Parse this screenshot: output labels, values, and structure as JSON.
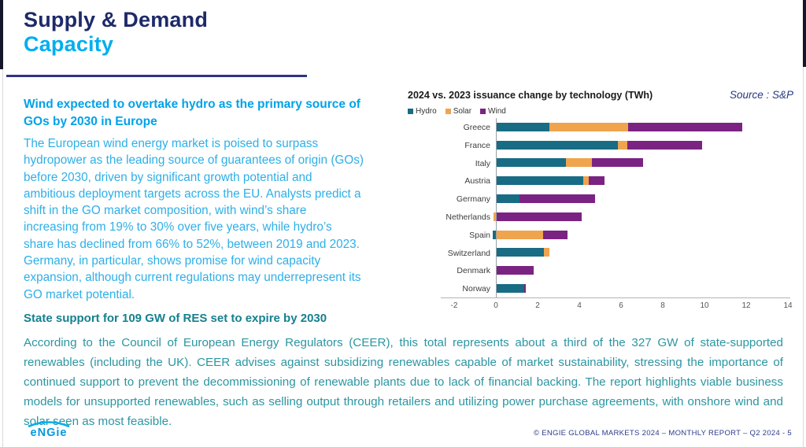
{
  "header": {
    "title_line1": "Supply & Demand",
    "title_line2": "Capacity"
  },
  "left_column": {
    "heading": "Wind expected to overtake hydro as the primary source of GOs by 2030 in Europe",
    "body": "The European wind energy market is poised to surpass hydropower as the leading source of guarantees of origin (GOs) before 2030, driven by significant growth potential and ambitious deployment targets across the EU. Analysts predict a shift in the GO market composition, with wind’s share increasing from 19% to 30% over five years, while hydro’s share has declined from 66% to 52%, between 2019 and 2023. Germany, in particular, shows promise for wind capacity expansion, although current regulations may underrepresent its GO market potential."
  },
  "chart": {
    "source": "Source : S&P"
  },
  "chart_data": {
    "type": "bar",
    "orientation": "horizontal",
    "stacked": true,
    "title": "2024 vs. 2023 issuance change by technology (TWh)",
    "categories": [
      "Greece",
      "France",
      "Italy",
      "Austria",
      "Germany",
      "Netherlands",
      "Spain",
      "Switzerland",
      "Denmark",
      "Norway"
    ],
    "series": [
      {
        "name": "Hydro",
        "color": "#186c84",
        "values": [
          2.55,
          5.85,
          3.35,
          4.2,
          1.15,
          0,
          -0.15,
          2.3,
          0,
          1.35
        ]
      },
      {
        "name": "Solar",
        "color": "#efa44d",
        "values": [
          3.8,
          0.45,
          1.25,
          0.25,
          0,
          -0.1,
          2.25,
          0.25,
          0,
          0
        ]
      },
      {
        "name": "Wind",
        "color": "#7b2382",
        "values": [
          5.45,
          3.6,
          2.45,
          0.75,
          3.6,
          4.1,
          1.2,
          0,
          1.8,
          0.1
        ]
      }
    ],
    "xlim": [
      -2,
      14
    ],
    "xticks": [
      -2,
      0,
      2,
      4,
      6,
      8,
      10,
      12,
      14
    ],
    "xlabel": "",
    "ylabel": "",
    "legend_position": "top-left",
    "grid": false
  },
  "bottom": {
    "heading": "State support for 109 GW of RES set to expire by 2030",
    "body": "According to the Council of European Energy Regulators (CEER), this total represents about a third of the 327 GW of state-supported renewables (including the UK). CEER advises against subsidizing renewables capable of market sustainability, stressing the importance of continued support to prevent the decommissioning of renewable plants due to lack of financial backing. The report highlights viable business models for unsupported renewables, such as selling output through retailers and utilizing power purchase agreements, with onshore wind and solar seen as most feasible."
  },
  "footer": {
    "logo": "eNGie",
    "copyright": "© ENGIE GLOBAL MARKETS 2024 – MONTHLY REPORT – Q2 2024 -  5"
  },
  "colors": {
    "navy_title": "#1e2a68",
    "cyan_accent": "#00aeef",
    "cyan_body": "#2eafe8",
    "teal_heading": "#15808f",
    "teal_body": "#2b96a2",
    "footer_navy": "#2d3a8c"
  }
}
